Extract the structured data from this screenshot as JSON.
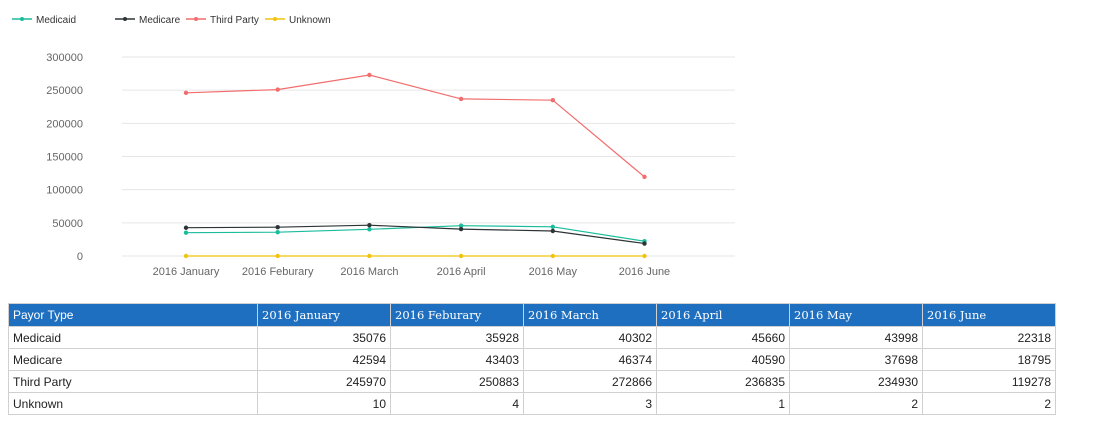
{
  "legend": [
    {
      "name": "Medicaid",
      "color": "#1abc9c"
    },
    {
      "name": "Medicare",
      "color": "#2d3436"
    },
    {
      "name": "Third Party",
      "color": "#f26d6d"
    },
    {
      "name": "Unknown",
      "color": "#f1c40f"
    }
  ],
  "chart_data": {
    "type": "line",
    "categories": [
      "2016 January",
      "2016 Feburary",
      "2016 March",
      "2016 April",
      "2016 May",
      "2016 June"
    ],
    "series": [
      {
        "name": "Medicaid",
        "color": "#1abc9c",
        "values": [
          35076,
          35928,
          40302,
          45660,
          43998,
          22318
        ]
      },
      {
        "name": "Medicare",
        "color": "#2d3436",
        "values": [
          42594,
          43403,
          46374,
          40590,
          37698,
          18795
        ]
      },
      {
        "name": "Third Party",
        "color": "#f26d6d",
        "values": [
          245970,
          250883,
          272866,
          236835,
          234930,
          119278
        ]
      },
      {
        "name": "Unknown",
        "color": "#f1c40f",
        "values": [
          10,
          4,
          3,
          1,
          2,
          2
        ]
      }
    ],
    "yticks": [
      "300000",
      "250000",
      "200000",
      "150000",
      "100000",
      "50000",
      "0"
    ],
    "ylim": [
      0,
      300000
    ],
    "grid": true,
    "legend_position": "top-left"
  },
  "table": {
    "headers": [
      "Payor Type",
      "2016 January",
      "2016 Feburary",
      "2016 March",
      "2016 April",
      "2016 May",
      "2016 June"
    ],
    "rows": [
      [
        "Medicaid",
        "35076",
        "35928",
        "40302",
        "45660",
        "43998",
        "22318"
      ],
      [
        "Medicare",
        "42594",
        "43403",
        "46374",
        "40590",
        "37698",
        "18795"
      ],
      [
        "Third Party",
        "245970",
        "250883",
        "272866",
        "236835",
        "234930",
        "119278"
      ],
      [
        "Unknown",
        "10",
        "4",
        "3",
        "1",
        "2",
        "2"
      ]
    ]
  }
}
